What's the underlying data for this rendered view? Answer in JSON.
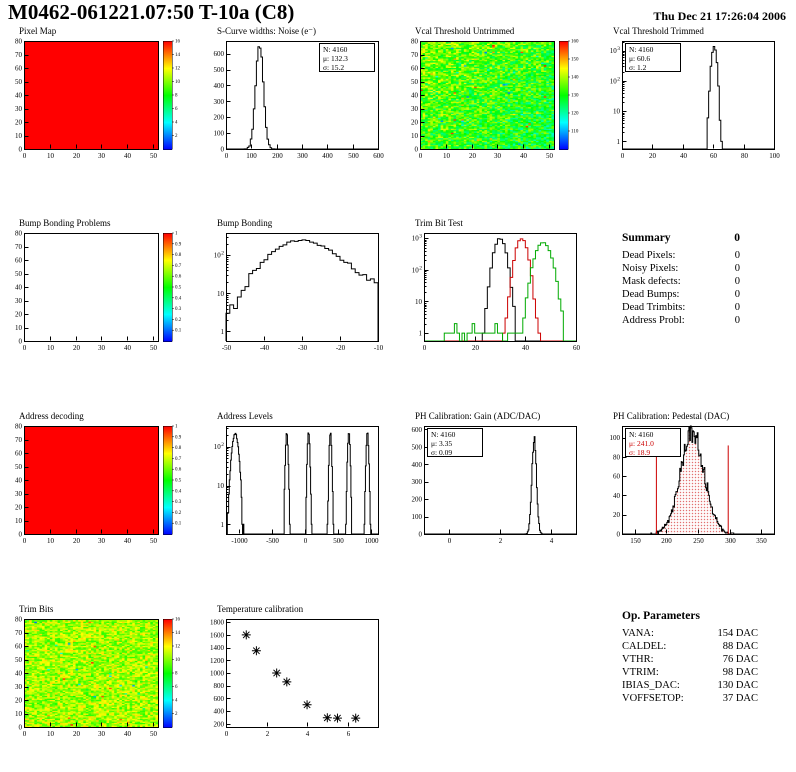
{
  "header": {
    "title": "M0462-061221.07:50 T-10a (C8)",
    "date": "Thu Dec 21 17:26:04 2006"
  },
  "colors": {
    "accent_red": "#cc0000",
    "accent_green": "#00aa00",
    "histogram_line": "#000000",
    "map_max_red": "#ff0000"
  },
  "chart_data": [
    {
      "id": "pixel-map",
      "type": "heatmap",
      "title": "Pixel Map",
      "x": {
        "min": 0,
        "max": 52,
        "ticks": [
          0,
          10,
          20,
          30,
          40,
          50
        ]
      },
      "y": {
        "min": 0,
        "max": 80,
        "ticks": [
          0,
          10,
          20,
          30,
          40,
          50,
          60,
          70,
          80
        ]
      },
      "z": {
        "min": 0,
        "max": 16,
        "ticks": [
          2,
          4,
          6,
          8,
          10,
          12,
          14,
          16
        ]
      },
      "fill": "solid"
    },
    {
      "id": "scurve-noise",
      "type": "hist",
      "title": "S-Curve widths: Noise (e⁻)",
      "x": {
        "min": 0,
        "max": 600,
        "ticks": [
          0,
          100,
          200,
          300,
          400,
          500,
          600
        ]
      },
      "y": {
        "min": 0,
        "max": 680,
        "ticks": [
          0,
          100,
          200,
          300,
          400,
          500,
          600
        ]
      },
      "range": [
        0,
        600
      ],
      "nbins": 100,
      "gausses": [
        {
          "N": 4160,
          "mean": 132.3,
          "sigma": 15.2
        }
      ],
      "stats": {
        "N": "4160",
        "mean": "132.3",
        "sigma": "15.2"
      },
      "stats_pos": "right"
    },
    {
      "id": "vcal-untrimmed",
      "type": "heatmap",
      "title": "Vcal Threshold Untrimmed",
      "x": {
        "min": 0,
        "max": 52,
        "ticks": [
          0,
          10,
          20,
          30,
          40,
          50
        ]
      },
      "y": {
        "min": 0,
        "max": 80,
        "ticks": [
          0,
          10,
          20,
          30,
          40,
          50,
          60,
          70,
          80
        ]
      },
      "z": {
        "min": 100,
        "max": 160,
        "ticks": [
          110,
          120,
          130,
          140,
          150,
          160
        ]
      },
      "fill": "noise",
      "noise": {
        "base": 0.54,
        "spread": 0.17,
        "outlier_prob": 0.03,
        "tilt": 0.16
      }
    },
    {
      "id": "vcal-trimmed",
      "type": "hist",
      "title": "Vcal Threshold Trimmed",
      "logy": true,
      "x": {
        "min": 0,
        "max": 100,
        "ticks": [
          0,
          20,
          40,
          60,
          80,
          100
        ]
      },
      "range": [
        0,
        100
      ],
      "nbins": 100,
      "gausses": [
        {
          "N": 4160,
          "mean": 60.6,
          "sigma": 1.2
        }
      ],
      "stats": {
        "N": "4160",
        "mean": "60.6",
        "sigma": "1.2"
      },
      "stats_pos": "left"
    },
    {
      "id": "bump-problems",
      "type": "heatmap",
      "title": "Bump Bonding Problems",
      "x": {
        "min": 0,
        "max": 52,
        "ticks": [
          0,
          10,
          20,
          30,
          40,
          50
        ]
      },
      "y": {
        "min": 0,
        "max": 80,
        "ticks": [
          0,
          10,
          20,
          30,
          40,
          50,
          60,
          70,
          80
        ]
      },
      "z": {
        "min": 0,
        "max": 1,
        "ticks": [
          0.1,
          0.2,
          0.3,
          0.4,
          0.5,
          0.6,
          0.7,
          0.8,
          0.9,
          1
        ]
      },
      "fill": "empty"
    },
    {
      "id": "bump-bonding",
      "type": "hist",
      "title": "Bump Bonding",
      "logy": true,
      "x": {
        "min": -50,
        "max": -10,
        "ticks": [
          -50,
          -40,
          -30,
          -20,
          -10
        ]
      },
      "range": [
        -50,
        -10
      ],
      "nbins": 40,
      "gausses": [
        {
          "N": 3000,
          "mean": -31,
          "sigma": 6
        },
        {
          "N": 1200,
          "mean": -24,
          "sigma": 9
        }
      ]
    },
    {
      "id": "trim-bit-test",
      "type": "hist",
      "title": "Trim Bit Test",
      "logy": true,
      "x": {
        "min": 0,
        "max": 60,
        "ticks": [
          0,
          20,
          40,
          60
        ]
      },
      "range": [
        0,
        60
      ],
      "nbins": 60,
      "series": [
        {
          "color": "#000000",
          "gausses": [
            {
              "N": 4160,
              "mean": 30,
              "sigma": 1.7
            }
          ]
        },
        {
          "color": "#cc0000",
          "gausses": [
            {
              "N": 4160,
              "mean": 38.5,
              "sigma": 1.7
            }
          ]
        },
        {
          "color": "#00aa00",
          "gausses": [
            {
              "N": 4160,
              "mean": 47,
              "sigma": 2.3
            }
          ],
          "floor": [
            8,
            55
          ]
        }
      ]
    },
    {
      "id": "address-decoding",
      "type": "heatmap",
      "title": "Address decoding",
      "x": {
        "min": 0,
        "max": 52,
        "ticks": [
          0,
          10,
          20,
          30,
          40,
          50
        ]
      },
      "y": {
        "min": 0,
        "max": 80,
        "ticks": [
          0,
          10,
          20,
          30,
          40,
          50,
          60,
          70,
          80
        ]
      },
      "z": {
        "min": 0,
        "max": 1,
        "ticks": [
          0.1,
          0.2,
          0.3,
          0.4,
          0.5,
          0.6,
          0.7,
          0.8,
          0.9,
          1
        ]
      },
      "fill": "solid"
    },
    {
      "id": "address-levels",
      "type": "hist",
      "title": "Address Levels",
      "logy": true,
      "x": {
        "min": -1200,
        "max": 1100,
        "ticks": [
          -1000,
          -500,
          0,
          500,
          1000
        ]
      },
      "range": [
        -1200,
        1100
      ],
      "nbins": 230,
      "gausses": [
        {
          "N": 1900,
          "mean": -1060,
          "sigma": 35
        },
        {
          "N": 750,
          "mean": -280,
          "sigma": 13
        },
        {
          "N": 750,
          "mean": 50,
          "sigma": 13
        },
        {
          "N": 750,
          "mean": 380,
          "sigma": 13
        },
        {
          "N": 750,
          "mean": 660,
          "sigma": 13
        },
        {
          "N": 750,
          "mean": 940,
          "sigma": 13
        }
      ]
    },
    {
      "id": "ph-gain",
      "type": "hist",
      "title": "PH Calibration: Gain (ADC/DAC)",
      "x": {
        "min": -1,
        "max": 5,
        "ticks": [
          0,
          2,
          4
        ]
      },
      "y": {
        "min": 0,
        "max": 620,
        "ticks": [
          0,
          100,
          200,
          300,
          400,
          500,
          600
        ]
      },
      "range": [
        -1,
        5
      ],
      "nbins": 200,
      "gausses": [
        {
          "N": 4160,
          "mean": 3.35,
          "sigma": 0.09
        }
      ],
      "stats": {
        "N": "4160",
        "mean": "3.35",
        "sigma": "0.09"
      },
      "stats_pos": "left"
    },
    {
      "id": "ph-pedestal",
      "type": "hist",
      "title": "PH Calibration: Pedestal (DAC)",
      "x": {
        "min": 130,
        "max": 370,
        "ticks": [
          150,
          200,
          250,
          300,
          350
        ]
      },
      "y": {
        "min": 0,
        "max": 112,
        "ticks": [
          0,
          20,
          40,
          60,
          80,
          100
        ]
      },
      "range": [
        130,
        370
      ],
      "nbins": 200,
      "series": [
        {
          "color": "#000000",
          "hatch": "#cc0000",
          "gausses": [
            {
              "N": 4160,
              "mean": 241,
              "sigma": 18.9
            }
          ]
        }
      ],
      "stats": {
        "N": "4160",
        "mean": "241.0",
        "sigma": "18.9",
        "mu_color": "#cc0000",
        "sigma_color": "#cc0000"
      },
      "stats_pos": "left",
      "vlines": [
        {
          "x": 184.3,
          "color": "#cc0000"
        },
        {
          "x": 297.7,
          "color": "#cc0000"
        }
      ]
    },
    {
      "id": "trim-bits",
      "type": "heatmap",
      "title": "Trim Bits",
      "x": {
        "min": 0,
        "max": 52,
        "ticks": [
          0,
          10,
          20,
          30,
          40,
          50
        ]
      },
      "y": {
        "min": 0,
        "max": 80,
        "ticks": [
          0,
          10,
          20,
          30,
          40,
          50,
          60,
          70,
          80
        ]
      },
      "z": {
        "min": 0,
        "max": 16,
        "ticks": [
          2,
          4,
          6,
          8,
          10,
          12,
          14,
          16
        ]
      },
      "fill": "noise",
      "noise": {
        "base": 0.66,
        "spread": 0.13,
        "outlier_prob": 0.01,
        "tilt": 0
      }
    },
    {
      "id": "temp-calibration",
      "type": "scatter",
      "title": "Temperature calibration",
      "x": {
        "min": 0,
        "max": 7.5,
        "ticks": [
          0,
          2,
          4,
          6
        ]
      },
      "y": {
        "min": 150,
        "max": 1850,
        "ticks": [
          200,
          400,
          600,
          800,
          1000,
          1200,
          1400,
          1600,
          1800
        ]
      },
      "points": [
        [
          1,
          1600
        ],
        [
          1.5,
          1350
        ],
        [
          2.5,
          1000
        ],
        [
          3,
          860
        ],
        [
          4,
          500
        ],
        [
          5,
          295
        ],
        [
          5.5,
          290
        ],
        [
          6.4,
          290
        ]
      ],
      "marker": "asterisk"
    }
  ],
  "summary": {
    "title": "Summary",
    "total": "0",
    "rows": [
      {
        "label": "Dead Pixels:",
        "value": "0"
      },
      {
        "label": "Noisy Pixels:",
        "value": "0"
      },
      {
        "label": "Mask defects:",
        "value": "0"
      },
      {
        "label": "Dead Bumps:",
        "value": "0"
      },
      {
        "label": "Dead Trimbits:",
        "value": "0"
      },
      {
        "label": "Address Probl:",
        "value": "0"
      }
    ]
  },
  "op_parameters": {
    "title": "Op. Parameters",
    "rows": [
      {
        "label": "VANA:",
        "value": "154 DAC"
      },
      {
        "label": "CALDEL:",
        "value": "88 DAC"
      },
      {
        "label": "VTHR:",
        "value": "76 DAC"
      },
      {
        "label": "VTRIM:",
        "value": "98 DAC"
      },
      {
        "label": "IBIAS_DAC:",
        "value": "130 DAC"
      },
      {
        "label": "VOFFSETOP:",
        "value": "37 DAC"
      }
    ]
  }
}
